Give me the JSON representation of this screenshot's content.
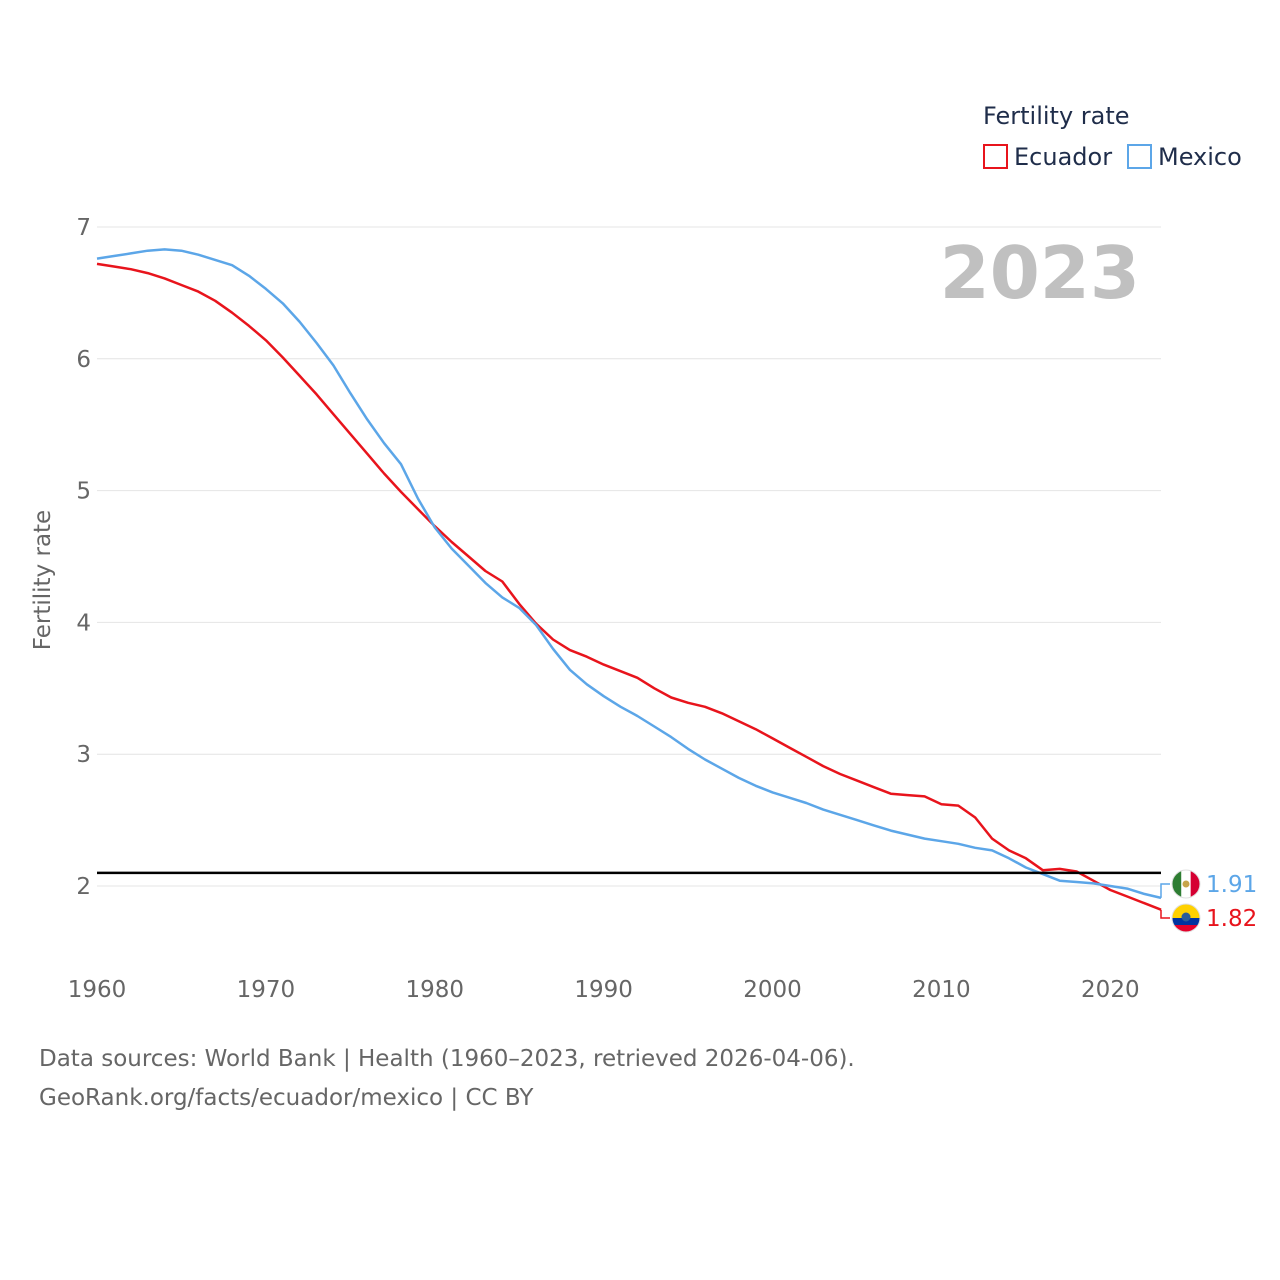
{
  "chart_data": {
    "type": "line",
    "title": "",
    "year_label": "2023",
    "ylabel": "Fertility rate",
    "xlabel": "",
    "xlim": [
      1960,
      2023
    ],
    "ylim": [
      1.5,
      7
    ],
    "x_ticks": [
      1960,
      1970,
      1980,
      1990,
      2000,
      2010,
      2020
    ],
    "y_ticks": [
      2,
      3,
      4,
      5,
      6,
      7
    ],
    "reference_line": {
      "y": 2.1,
      "color": "#000000"
    },
    "legend": {
      "title": "Fertility rate",
      "position": "top-right"
    },
    "x": [
      1960,
      1961,
      1962,
      1963,
      1964,
      1965,
      1966,
      1967,
      1968,
      1969,
      1970,
      1971,
      1972,
      1973,
      1974,
      1975,
      1976,
      1977,
      1978,
      1979,
      1980,
      1981,
      1982,
      1983,
      1984,
      1985,
      1986,
      1987,
      1988,
      1989,
      1990,
      1991,
      1992,
      1993,
      1994,
      1995,
      1996,
      1997,
      1998,
      1999,
      2000,
      2001,
      2002,
      2003,
      2004,
      2005,
      2006,
      2007,
      2008,
      2009,
      2010,
      2011,
      2012,
      2013,
      2014,
      2015,
      2016,
      2017,
      2018,
      2019,
      2020,
      2021,
      2022,
      2023
    ],
    "series": [
      {
        "name": "Ecuador",
        "color": "#e8141c",
        "end_label": "1.82",
        "flag": "ecuador-flag-icon",
        "values": [
          6.72,
          6.7,
          6.68,
          6.65,
          6.61,
          6.56,
          6.51,
          6.44,
          6.35,
          6.25,
          6.14,
          6.01,
          5.87,
          5.73,
          5.58,
          5.43,
          5.28,
          5.13,
          4.99,
          4.86,
          4.73,
          4.61,
          4.5,
          4.39,
          4.31,
          4.14,
          3.99,
          3.87,
          3.79,
          3.74,
          3.68,
          3.63,
          3.58,
          3.5,
          3.43,
          3.39,
          3.36,
          3.31,
          3.25,
          3.19,
          3.12,
          3.05,
          2.98,
          2.91,
          2.85,
          2.8,
          2.75,
          2.7,
          2.69,
          2.68,
          2.62,
          2.61,
          2.52,
          2.36,
          2.27,
          2.21,
          2.12,
          2.13,
          2.11,
          2.04,
          1.97,
          1.92,
          1.87,
          1.82
        ]
      },
      {
        "name": "Mexico",
        "color": "#5ca6e8",
        "end_label": "1.91",
        "flag": "mexico-flag-icon",
        "values": [
          6.76,
          6.78,
          6.8,
          6.82,
          6.83,
          6.82,
          6.79,
          6.75,
          6.71,
          6.63,
          6.53,
          6.42,
          6.28,
          6.12,
          5.95,
          5.74,
          5.54,
          5.36,
          5.2,
          4.94,
          4.72,
          4.56,
          4.43,
          4.3,
          4.19,
          4.11,
          3.98,
          3.8,
          3.64,
          3.53,
          3.44,
          3.36,
          3.29,
          3.21,
          3.13,
          3.04,
          2.96,
          2.89,
          2.82,
          2.76,
          2.71,
          2.67,
          2.63,
          2.58,
          2.54,
          2.5,
          2.46,
          2.42,
          2.39,
          2.36,
          2.34,
          2.32,
          2.29,
          2.27,
          2.21,
          2.14,
          2.09,
          2.04,
          2.03,
          2.02,
          2.0,
          1.98,
          1.94,
          1.91
        ]
      }
    ]
  },
  "footer": {
    "line1": "Data sources: World Bank | Health (1960–2023, retrieved 2026-04-06).",
    "line2": "GeoRank.org/facts/ecuador/mexico | CC BY"
  }
}
